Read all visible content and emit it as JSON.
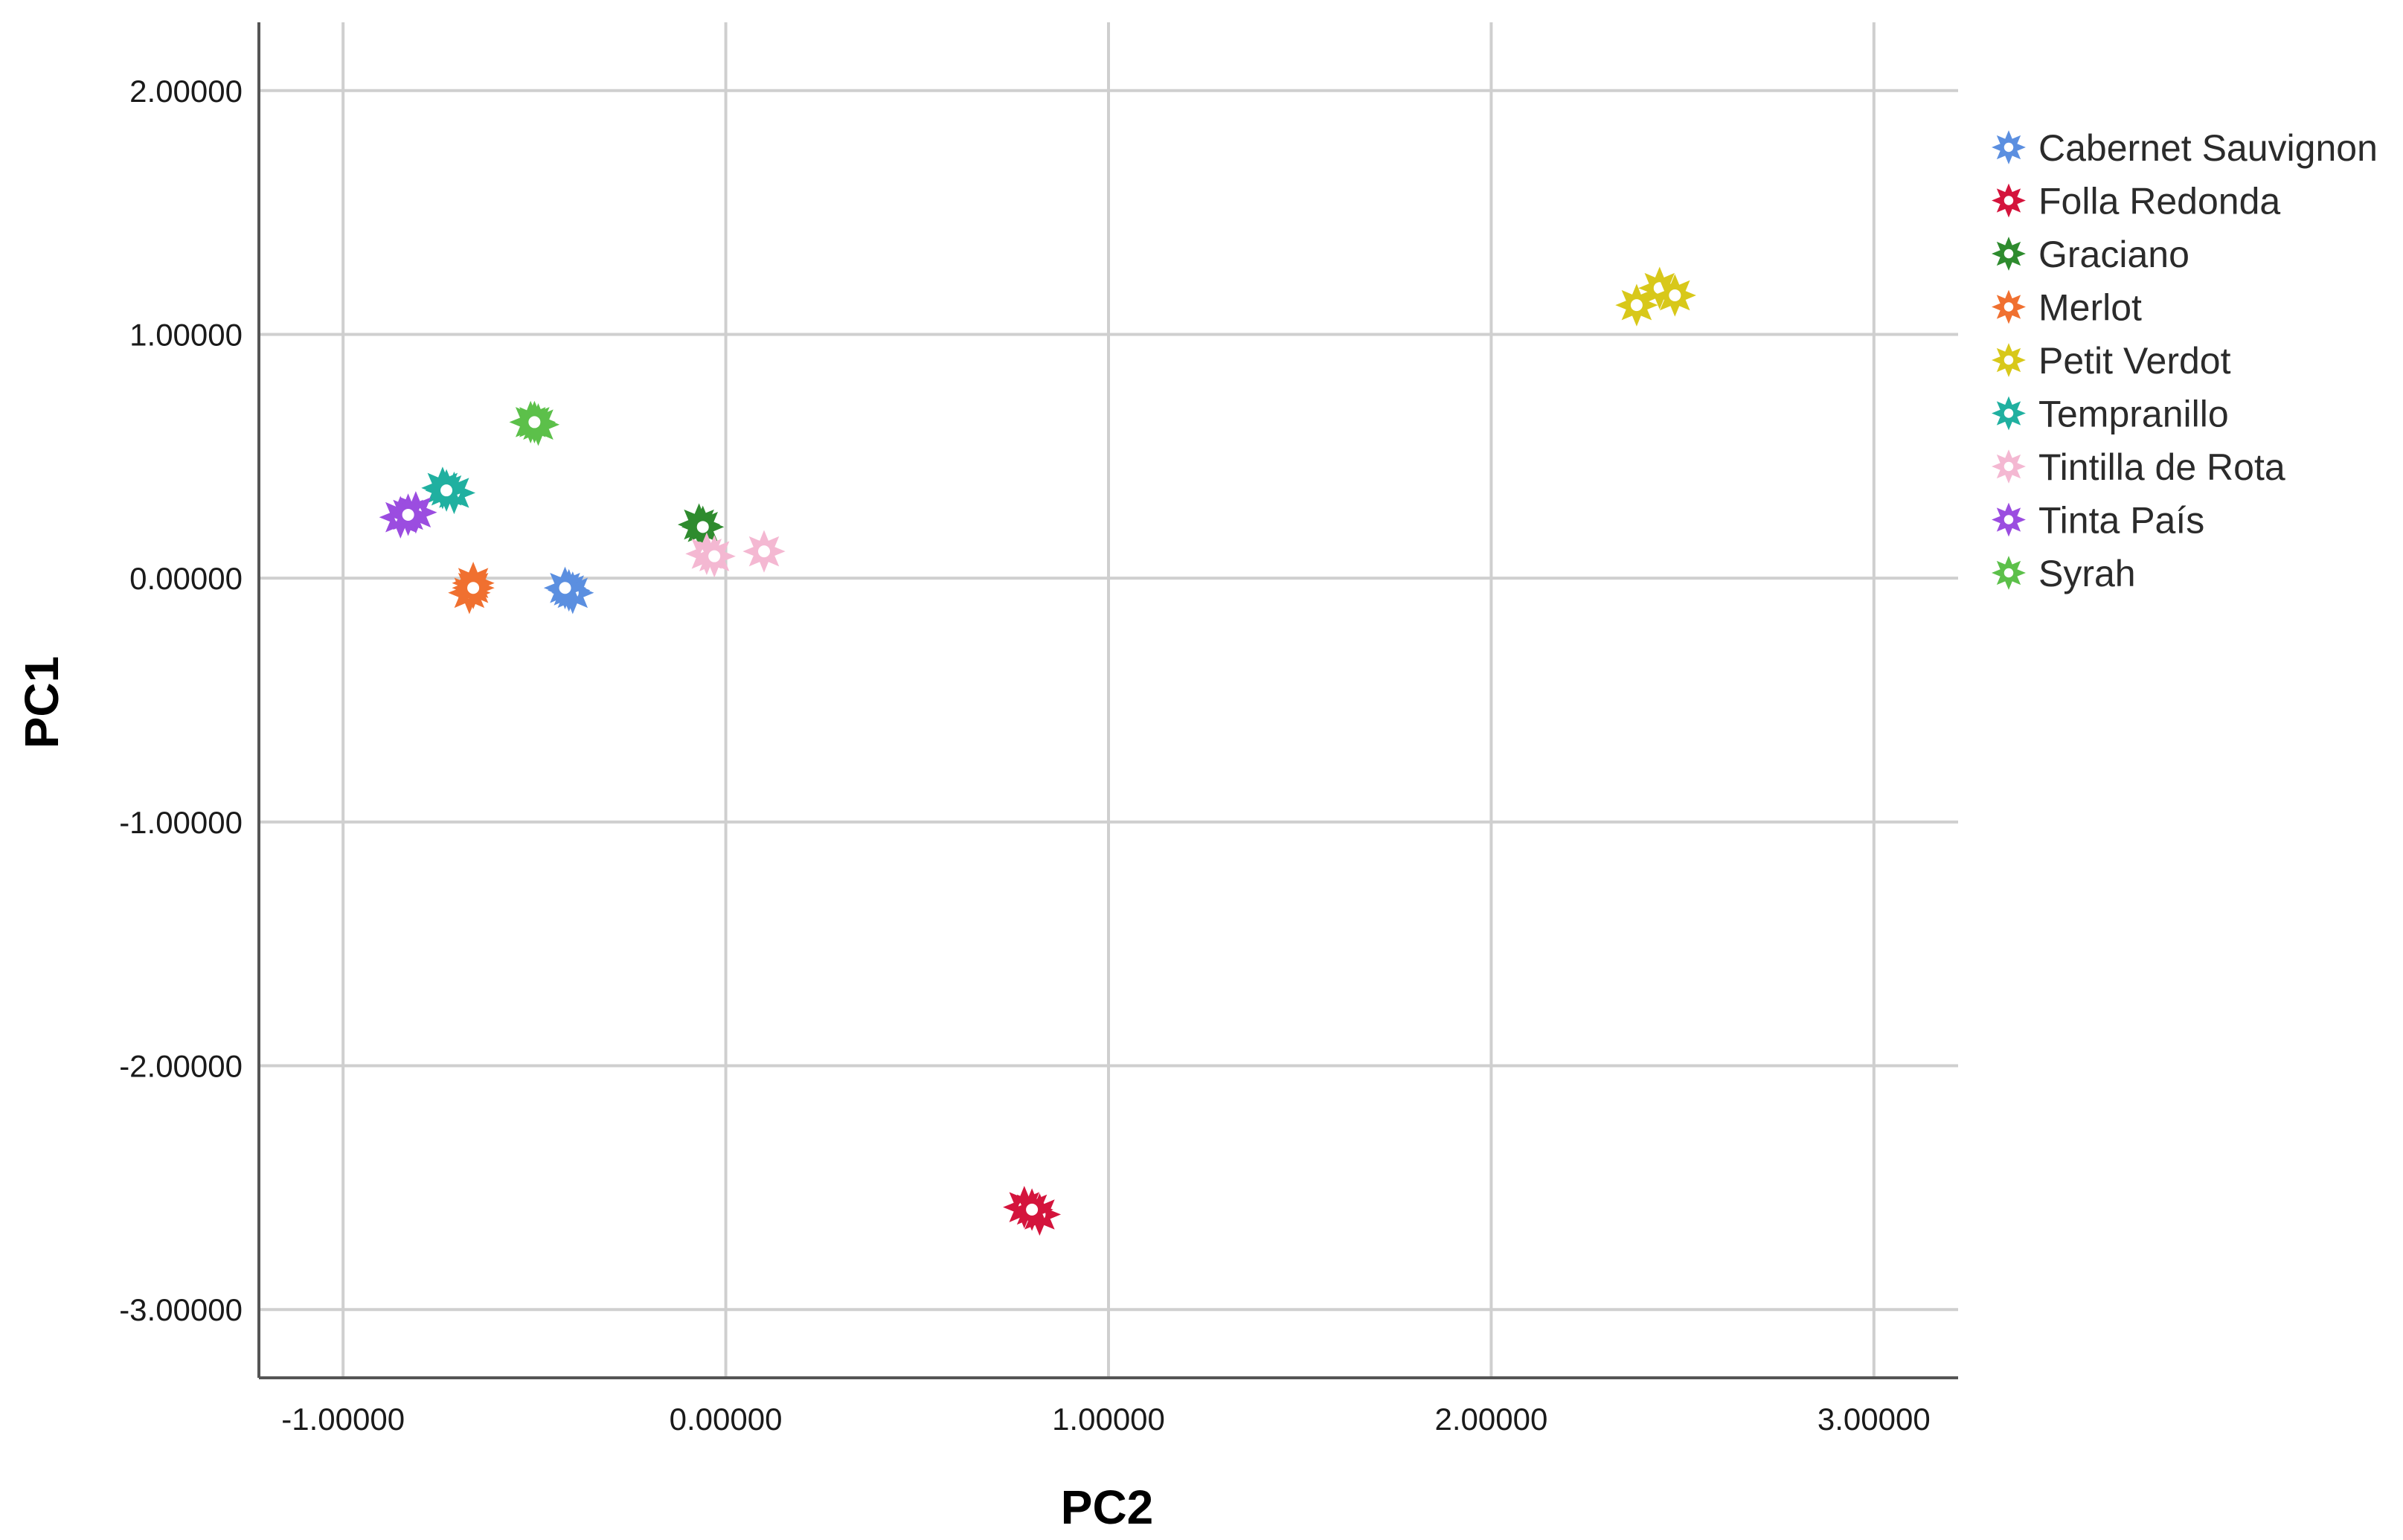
{
  "chart_data": {
    "type": "scatter",
    "title": "",
    "xlabel": "PC2",
    "ylabel": "PC1",
    "xlim": [
      -1.22,
      3.22
    ],
    "ylim": [
      -3.28,
      2.28
    ],
    "xticks": [
      -1,
      0,
      1,
      2,
      3
    ],
    "yticks": [
      2,
      1,
      0,
      -1,
      -2,
      -3
    ],
    "xtick_labels": [
      "-1.00000",
      "0.00000",
      "1.00000",
      "2.00000",
      "3.00000"
    ],
    "ytick_labels": [
      "2.00000",
      "1.00000",
      "0.00000",
      "-1.00000",
      "-2.00000",
      "-3.00000"
    ],
    "grid": true,
    "legend_position": "right",
    "series": [
      {
        "name": "Cabernet Sauvignon",
        "color": "#5b8fe0",
        "points": [
          [
            -0.41,
            -0.05
          ],
          [
            -0.4,
            -0.06
          ],
          [
            -0.42,
            -0.04
          ]
        ]
      },
      {
        "name": "Folla Redonda",
        "color": "#d4143c",
        "points": [
          [
            0.78,
            -2.58
          ],
          [
            0.82,
            -2.61
          ],
          [
            0.8,
            -2.59
          ]
        ]
      },
      {
        "name": "Graciano",
        "color": "#2e8b2e",
        "points": [
          [
            -0.07,
            0.22
          ],
          [
            -0.06,
            0.21
          ]
        ]
      },
      {
        "name": "Merlot",
        "color": "#f07030",
        "points": [
          [
            -0.66,
            -0.02
          ],
          [
            -0.67,
            -0.06
          ],
          [
            -0.66,
            -0.04
          ]
        ]
      },
      {
        "name": "Petit Verdot",
        "color": "#d8c81a",
        "points": [
          [
            2.38,
            1.12
          ],
          [
            2.44,
            1.19
          ],
          [
            2.48,
            1.16
          ]
        ]
      },
      {
        "name": "Tempranillo",
        "color": "#20b0a0",
        "points": [
          [
            -0.74,
            0.37
          ],
          [
            -0.71,
            0.35
          ],
          [
            -0.73,
            0.36
          ]
        ]
      },
      {
        "name": "Tintilla de Rota",
        "color": "#f4b8d2",
        "points": [
          [
            -0.05,
            0.1
          ],
          [
            -0.03,
            0.09
          ],
          [
            0.1,
            0.11
          ]
        ]
      },
      {
        "name": "Tinta País",
        "color": "#9b4de0",
        "points": [
          [
            -0.85,
            0.25
          ],
          [
            -0.81,
            0.27
          ],
          [
            -0.83,
            0.26
          ]
        ]
      },
      {
        "name": "Syrah",
        "color": "#5cc04a",
        "points": [
          [
            -0.51,
            0.64
          ],
          [
            -0.49,
            0.63
          ],
          [
            -0.5,
            0.64
          ]
        ]
      }
    ]
  }
}
